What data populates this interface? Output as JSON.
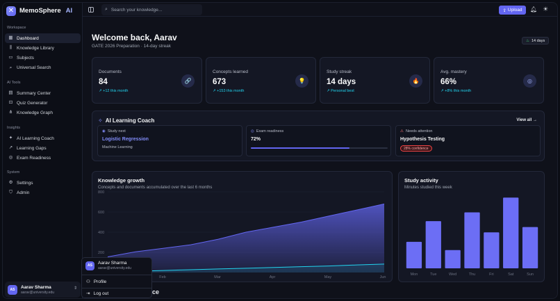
{
  "app": {
    "name": "MemoSphere",
    "name_suffix": "AI",
    "logo_glyph": "✕"
  },
  "sidebar": {
    "sections": [
      {
        "title": "Workspace",
        "items": [
          {
            "label": "Dashboard",
            "icon": "grid-icon",
            "glyph": "▦",
            "active": true
          },
          {
            "label": "Knowledge Library",
            "icon": "library-icon",
            "glyph": "⫼",
            "active": false
          },
          {
            "label": "Subjects",
            "icon": "folder-icon",
            "glyph": "▭",
            "active": false
          },
          {
            "label": "Universal Search",
            "icon": "search-icon",
            "glyph": "⌕",
            "active": false
          }
        ]
      },
      {
        "title": "AI Tools",
        "items": [
          {
            "label": "Summary Center",
            "icon": "document-icon",
            "glyph": "▤",
            "active": false
          },
          {
            "label": "Quiz Generator",
            "icon": "quiz-icon",
            "glyph": "⊡",
            "active": false
          },
          {
            "label": "Knowledge Graph",
            "icon": "graph-icon",
            "glyph": "⋔",
            "active": false
          }
        ]
      },
      {
        "title": "Insights",
        "items": [
          {
            "label": "AI Learning Coach",
            "icon": "sparkle-icon",
            "glyph": "✦",
            "active": false
          },
          {
            "label": "Learning Gaps",
            "icon": "trend-icon",
            "glyph": "↗",
            "active": false
          },
          {
            "label": "Exam Readiness",
            "icon": "target-icon",
            "glyph": "◎",
            "active": false
          }
        ]
      },
      {
        "title": "System",
        "items": [
          {
            "label": "Settings",
            "icon": "gear-icon",
            "glyph": "⚙",
            "active": false
          },
          {
            "label": "Admin",
            "icon": "shield-icon",
            "glyph": "⛉",
            "active": false
          }
        ]
      }
    ]
  },
  "user": {
    "initials": "AS",
    "name": "Aarav Sharma",
    "email": "aarav@university.edu"
  },
  "user_menu": {
    "profile_label": "Profile",
    "logout_label": "Log out"
  },
  "topbar": {
    "search_placeholder": "Search your knowledge...",
    "upload_label": "Upload"
  },
  "main": {
    "welcome": "Welcome back, Aarav",
    "subtitle": "GATE 2026 Preparation · 14-day streak",
    "streak_badge": "14 days",
    "footer_partial": "ce"
  },
  "stats": [
    {
      "label": "Documents",
      "value": "84",
      "delta": "+12 this month",
      "icon": "link-icon",
      "glyph": "🔗"
    },
    {
      "label": "Concepts learned",
      "value": "673",
      "delta": "+153 this month",
      "icon": "lightbulb-icon",
      "glyph": "💡"
    },
    {
      "label": "Study streak",
      "value": "14 days",
      "delta": "Personal best",
      "icon": "flame-icon",
      "glyph": "🔥"
    },
    {
      "label": "Avg. mastery",
      "value": "66%",
      "delta": "+8% this month",
      "icon": "target-icon",
      "glyph": "◎"
    }
  ],
  "coach": {
    "title": "AI Learning Coach",
    "view_all": "View all",
    "study_next": {
      "label": "Study next",
      "title": "Logistic Regression",
      "subtitle": "Machine Learning"
    },
    "readiness": {
      "label": "Exam readiness",
      "value": "72%",
      "fraction": 0.72
    },
    "attention": {
      "label": "Needs attention",
      "title": "Hypothesis Testing",
      "badge": "28% confidence"
    }
  },
  "chart_data": [
    {
      "type": "area",
      "title": "Knowledge growth",
      "subtitle": "Concepts and documents accumulated over the last 6 months",
      "categories": [
        "Feb",
        "Mar",
        "Apr",
        "May",
        "Jun"
      ],
      "x": [
        0,
        1,
        2,
        3,
        4,
        5,
        6,
        7,
        8,
        9,
        10
      ],
      "series": [
        {
          "values": [
            155,
            205,
            240,
            275,
            330,
            400,
            450,
            500,
            560,
            620,
            680
          ],
          "color": "#6366f1"
        },
        {
          "values": [
            5,
            12,
            20,
            28,
            35,
            42,
            50,
            58,
            65,
            75,
            84
          ],
          "color": "#22d3ee"
        }
      ],
      "yticks": [
        200,
        400,
        600,
        800
      ],
      "ylim": [
        0,
        800
      ]
    },
    {
      "type": "bar",
      "title": "Study activity",
      "subtitle": "Minutes studied this week",
      "categories": [
        "Mon",
        "Tue",
        "Wed",
        "Thu",
        "Fri",
        "Sat",
        "Sun"
      ],
      "values": [
        45,
        80,
        31,
        95,
        61,
        120,
        70
      ],
      "ylim": [
        0,
        125
      ],
      "color": "#6c6ef5"
    }
  ]
}
